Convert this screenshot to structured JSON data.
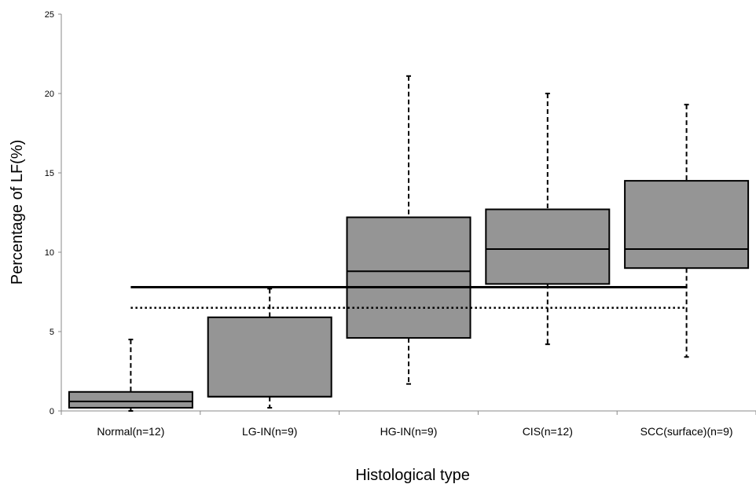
{
  "chart_data": {
    "type": "box",
    "xlabel": "Histological type",
    "ylabel": "Percentage of LF(%)",
    "ylim": [
      0,
      25
    ],
    "yticks": [
      0,
      5,
      10,
      15,
      20,
      25
    ],
    "grid": false,
    "categories": [
      "Normal(n=12)",
      "LG-IN(n=9)",
      "HG-IN(n=9)",
      "CIS(n=12)",
      "SCC(surface)(n=9)"
    ],
    "boxes": [
      {
        "min": 0.0,
        "q1": 0.2,
        "median": 0.6,
        "q3": 1.2,
        "max": 4.5
      },
      {
        "min": 0.2,
        "q1": 0.9,
        "median": 0.9,
        "q3": 5.9,
        "max": 7.7
      },
      {
        "min": 1.7,
        "q1": 4.6,
        "median": 8.8,
        "q3": 12.2,
        "max": 21.1
      },
      {
        "min": 4.2,
        "q1": 8.0,
        "median": 10.2,
        "q3": 12.7,
        "max": 20.0
      },
      {
        "min": 3.4,
        "q1": 9.0,
        "median": 10.2,
        "q3": 14.5,
        "max": 19.3
      }
    ],
    "reference_lines": [
      {
        "style": "solid",
        "value": 7.8,
        "from_category": 0,
        "to_category": 4
      },
      {
        "style": "dotted",
        "value": 6.5,
        "from_category": 0,
        "to_category": 4
      }
    ],
    "colors": {
      "box_fill": "#959595",
      "stroke": "#000000"
    }
  }
}
